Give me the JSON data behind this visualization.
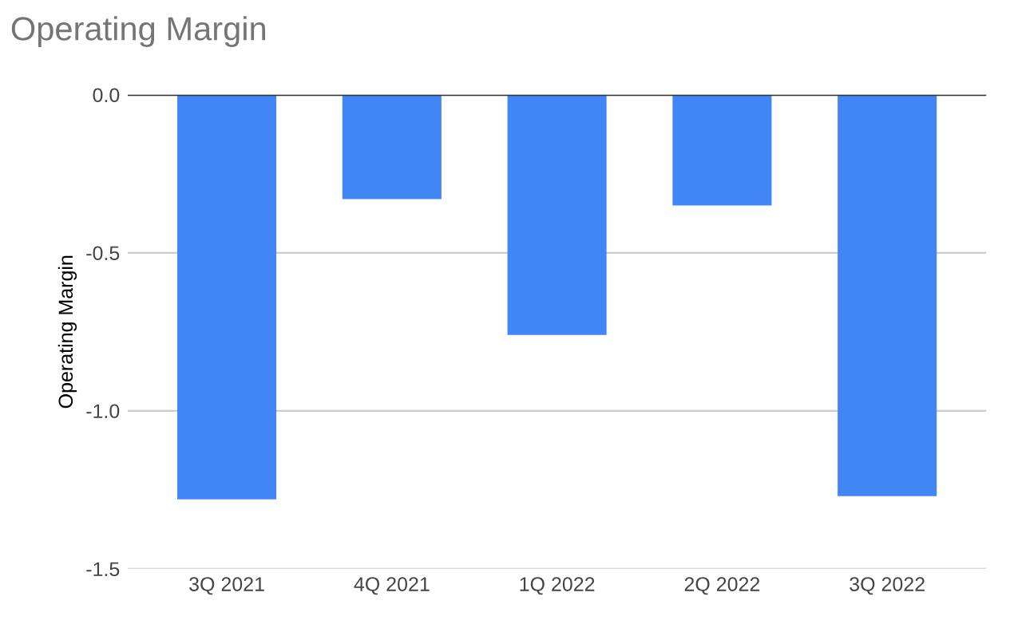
{
  "chart_data": {
    "type": "bar",
    "title": "Operating Margin",
    "ylabel": "Operating Margin",
    "categories": [
      "3Q 2021",
      "4Q 2021",
      "1Q 2022",
      "2Q 2022",
      "3Q 2022"
    ],
    "values": [
      -1.28,
      -0.33,
      -0.76,
      -0.35,
      -1.27
    ],
    "color": "#4285f4",
    "ylim": [
      -1.5,
      0
    ],
    "yticks": [
      {
        "value": -1.5,
        "label": "-1.5"
      },
      {
        "value": -1.0,
        "label": "-1.0"
      },
      {
        "value": -0.5,
        "label": "-0.5"
      },
      {
        "value": 0.0,
        "label": "0.0"
      }
    ],
    "grid": "y"
  }
}
